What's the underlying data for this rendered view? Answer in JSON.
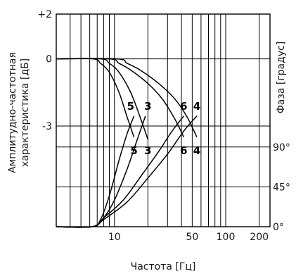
{
  "chart_data": {
    "type": "line",
    "xlabel": "Частота [Гц]",
    "ylabel_left": "Амплитудно-частотная характеристика [дБ]",
    "ylabel_left_lines": [
      "Амплитудно-частотная",
      "характеристика [дБ]"
    ],
    "ylabel_right": "Фаза [градус]",
    "x_scale": "log",
    "xlim": [
      3,
      250
    ],
    "x_ticks": [
      {
        "value": 10,
        "label": "10"
      },
      {
        "value": 50,
        "label": "50"
      },
      {
        "value": 100,
        "label": "100"
      },
      {
        "value": 200,
        "label": "200"
      }
    ],
    "x_gridlines": [
      4,
      5,
      6,
      7,
      8,
      9,
      10,
      20,
      30,
      40,
      50,
      60,
      70,
      80,
      90,
      100,
      200
    ],
    "left_ylim": [
      -7.5,
      2
    ],
    "left_ticks": [
      {
        "value": 2,
        "label": "+2"
      },
      {
        "value": 0,
        "label": "0"
      },
      {
        "value": -3,
        "label": "-3"
      }
    ],
    "right_ylim": [
      0,
      240
    ],
    "right_ticks": [
      {
        "value": 90,
        "label": "90°"
      },
      {
        "value": 45,
        "label": "45°"
      },
      {
        "value": 0,
        "label": "0°"
      }
    ],
    "grid": true,
    "series": [
      {
        "name": "5",
        "axis": "amplitude",
        "x": [
          3,
          6.4,
          7.5,
          9,
          11,
          13,
          15
        ],
        "y": [
          0,
          0,
          -0.2,
          -0.6,
          -1.5,
          -2.6,
          -3.5
        ]
      },
      {
        "name": "3",
        "axis": "amplitude",
        "x": [
          3,
          7.5,
          9,
          11,
          14,
          17,
          20
        ],
        "y": [
          0,
          0,
          -0.2,
          -0.6,
          -1.5,
          -2.6,
          -3.6
        ]
      },
      {
        "name": "6",
        "axis": "amplitude",
        "x": [
          3,
          9,
          11,
          14,
          20,
          27,
          35,
          42
        ],
        "y": [
          0,
          0,
          -0.2,
          -0.5,
          -1.1,
          -1.8,
          -2.7,
          -3.5
        ]
      },
      {
        "name": "4",
        "axis": "amplitude",
        "x": [
          3,
          10.5,
          13,
          17,
          25,
          35,
          45,
          55
        ],
        "y": [
          0,
          0,
          -0.2,
          -0.5,
          -1.1,
          -1.8,
          -2.6,
          -3.5
        ]
      },
      {
        "name": "5",
        "axis": "phase",
        "x": [
          3,
          6.3,
          7.5,
          9,
          11,
          13,
          15
        ],
        "y": [
          0,
          0,
          8,
          35,
          75,
          105,
          125
        ]
      },
      {
        "name": "3",
        "axis": "phase",
        "x": [
          3,
          6.3,
          8,
          10,
          13,
          16,
          19
        ],
        "y": [
          0,
          0,
          10,
          30,
          65,
          98,
          125
        ]
      },
      {
        "name": "6",
        "axis": "phase",
        "x": [
          3,
          6.3,
          8,
          12,
          18,
          25,
          33,
          42
        ],
        "y": [
          0,
          0,
          10,
          30,
          60,
          85,
          108,
          125
        ]
      },
      {
        "name": "4",
        "axis": "phase",
        "x": [
          3,
          6.3,
          8,
          13,
          20,
          30,
          42,
          55
        ],
        "y": [
          0,
          0,
          8,
          28,
          55,
          82,
          108,
          125
        ]
      }
    ],
    "curve_labels": [
      {
        "text": "5",
        "x": 15,
        "amp": -4.1
      },
      {
        "text": "3",
        "x": 20,
        "amp": -4.1
      },
      {
        "text": "6",
        "x": 42,
        "amp": -4.1
      },
      {
        "text": "4",
        "x": 55,
        "amp": -4.1
      },
      {
        "text": "5",
        "x": 14,
        "phase": 136
      },
      {
        "text": "3",
        "x": 20,
        "phase": 136
      },
      {
        "text": "6",
        "x": 42,
        "phase": 136
      },
      {
        "text": "4",
        "x": 55,
        "phase": 136
      }
    ]
  }
}
